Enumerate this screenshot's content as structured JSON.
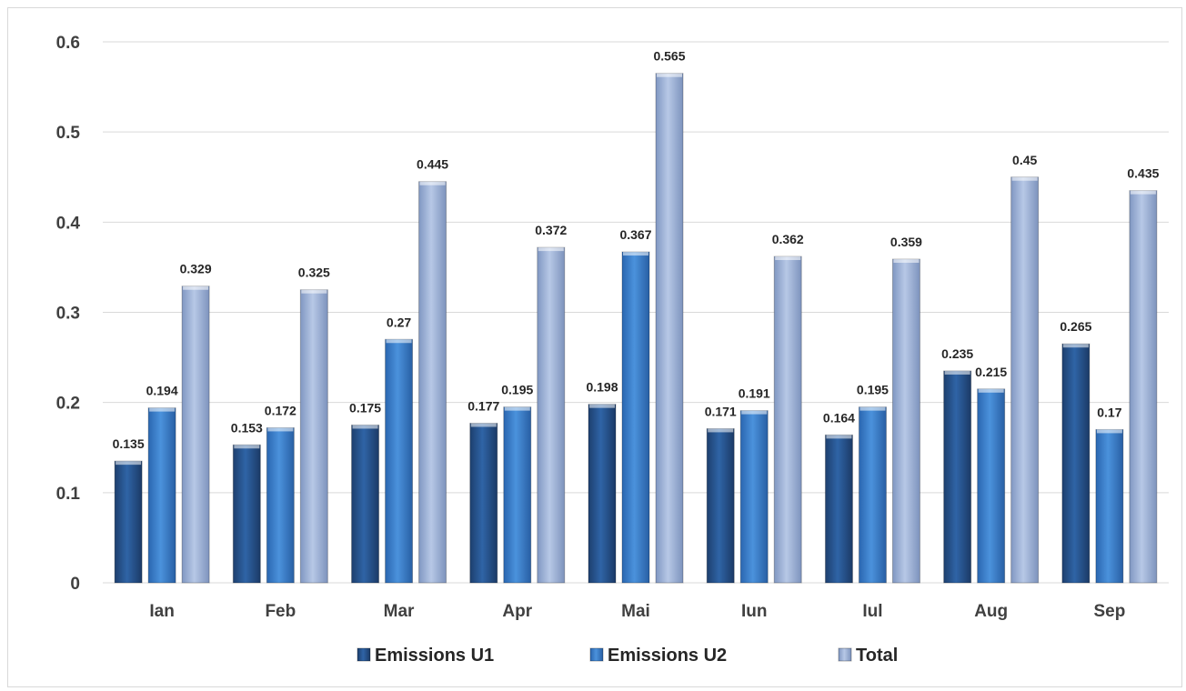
{
  "chart_data": {
    "type": "bar",
    "categories": [
      "Ian",
      "Feb",
      "Mar",
      "Apr",
      "Mai",
      "Iun",
      "Iul",
      "Aug",
      "Sep"
    ],
    "series": [
      {
        "name": "Emissions U1",
        "color": "#2e5f9e",
        "values": [
          0.135,
          0.153,
          0.175,
          0.177,
          0.198,
          0.171,
          0.164,
          0.235,
          0.265
        ]
      },
      {
        "name": "Emissions U2",
        "color": "#3b82d0",
        "values": [
          0.194,
          0.172,
          0.27,
          0.195,
          0.367,
          0.191,
          0.195,
          0.215,
          0.17
        ]
      },
      {
        "name": "Total",
        "color": "#9fb3d6",
        "values": [
          0.329,
          0.325,
          0.445,
          0.372,
          0.565,
          0.362,
          0.359,
          0.45,
          0.435
        ]
      }
    ],
    "data_labels": [
      [
        "0.135",
        "0.153",
        "0.175",
        "0.177",
        "0.198",
        "0.171",
        "0.164",
        "0.235",
        "0.265"
      ],
      [
        "0.194",
        "0.172",
        "0.27",
        "0.195",
        "0.367",
        "0.191",
        "0.195",
        "0.215",
        "0.17"
      ],
      [
        "0.329",
        "0.325",
        "0.445",
        "0.372",
        "0.565",
        "0.362",
        "0.359",
        "0.45",
        "0.435"
      ]
    ],
    "y_ticks": [
      "0",
      "0.1",
      "0.2",
      "0.3",
      "0.4",
      "0.5",
      "0.6"
    ],
    "ylim": [
      0,
      0.6
    ],
    "grid": true,
    "legend_position": "bottom"
  }
}
